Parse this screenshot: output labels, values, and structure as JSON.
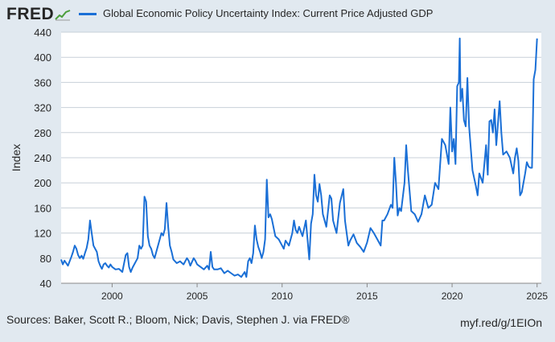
{
  "header": {
    "logo": "FRED",
    "logo_icon": "line-chart-icon"
  },
  "colors": {
    "series": "#1a6fd6",
    "grid": "#c8d0d8",
    "text": "#262626",
    "plot_bg": "#ffffff"
  },
  "footer": {
    "source": "Sources: Baker, Scott R.; Bloom, Nick; Davis, Stephen J. via FRED®",
    "short_url": "myf.red/g/1EIOn"
  },
  "chart_data": {
    "type": "line",
    "title": "Global Economic Policy Uncertainty Index: Current Price Adjusted GDP",
    "xlabel": "",
    "ylabel": "Index",
    "xlim": [
      1997.0,
      2025.25
    ],
    "ylim": [
      40,
      440
    ],
    "x_ticks": [
      2000,
      2005,
      2010,
      2015,
      2020,
      2025
    ],
    "y_ticks": [
      40,
      80,
      120,
      160,
      200,
      240,
      280,
      320,
      360,
      400,
      440
    ],
    "grid": true,
    "legend": "top",
    "series": [
      {
        "name": "Global Economic Policy Uncertainty Index: Current Price Adjusted GDP",
        "points": [
          [
            1997.0,
            78
          ],
          [
            1997.1,
            70
          ],
          [
            1997.2,
            76
          ],
          [
            1997.3,
            72
          ],
          [
            1997.4,
            68
          ],
          [
            1997.5,
            75
          ],
          [
            1997.6,
            82
          ],
          [
            1997.7,
            90
          ],
          [
            1997.8,
            100
          ],
          [
            1997.9,
            95
          ],
          [
            1998.0,
            85
          ],
          [
            1998.1,
            80
          ],
          [
            1998.2,
            84
          ],
          [
            1998.3,
            79
          ],
          [
            1998.4,
            88
          ],
          [
            1998.5,
            96
          ],
          [
            1998.6,
            110
          ],
          [
            1998.7,
            140
          ],
          [
            1998.8,
            120
          ],
          [
            1998.9,
            100
          ],
          [
            1999.0,
            95
          ],
          [
            1999.1,
            90
          ],
          [
            1999.2,
            75
          ],
          [
            1999.3,
            68
          ],
          [
            1999.4,
            63
          ],
          [
            1999.5,
            70
          ],
          [
            1999.6,
            72
          ],
          [
            1999.7,
            68
          ],
          [
            1999.8,
            65
          ],
          [
            1999.9,
            70
          ],
          [
            2000.0,
            66
          ],
          [
            2000.2,
            62
          ],
          [
            2000.4,
            63
          ],
          [
            2000.6,
            58
          ],
          [
            2000.8,
            85
          ],
          [
            2000.9,
            88
          ],
          [
            2001.0,
            66
          ],
          [
            2001.1,
            58
          ],
          [
            2001.2,
            65
          ],
          [
            2001.3,
            70
          ],
          [
            2001.4,
            75
          ],
          [
            2001.5,
            80
          ],
          [
            2001.6,
            100
          ],
          [
            2001.7,
            95
          ],
          [
            2001.8,
            100
          ],
          [
            2001.9,
            178
          ],
          [
            2002.0,
            170
          ],
          [
            2002.1,
            115
          ],
          [
            2002.2,
            100
          ],
          [
            2002.3,
            95
          ],
          [
            2002.4,
            85
          ],
          [
            2002.5,
            80
          ],
          [
            2002.6,
            90
          ],
          [
            2002.8,
            110
          ],
          [
            2002.9,
            120
          ],
          [
            2003.0,
            116
          ],
          [
            2003.1,
            126
          ],
          [
            2003.2,
            168
          ],
          [
            2003.3,
            130
          ],
          [
            2003.4,
            100
          ],
          [
            2003.5,
            90
          ],
          [
            2003.6,
            78
          ],
          [
            2003.8,
            72
          ],
          [
            2004.0,
            75
          ],
          [
            2004.2,
            70
          ],
          [
            2004.4,
            80
          ],
          [
            2004.5,
            76
          ],
          [
            2004.6,
            68
          ],
          [
            2004.8,
            80
          ],
          [
            2004.9,
            76
          ],
          [
            2005.0,
            70
          ],
          [
            2005.2,
            66
          ],
          [
            2005.4,
            62
          ],
          [
            2005.6,
            68
          ],
          [
            2005.7,
            62
          ],
          [
            2005.8,
            90
          ],
          [
            2005.9,
            66
          ],
          [
            2006.0,
            62
          ],
          [
            2006.2,
            62
          ],
          [
            2006.4,
            64
          ],
          [
            2006.6,
            56
          ],
          [
            2006.8,
            60
          ],
          [
            2007.0,
            56
          ],
          [
            2007.2,
            52
          ],
          [
            2007.4,
            54
          ],
          [
            2007.6,
            50
          ],
          [
            2007.8,
            58
          ],
          [
            2007.9,
            50
          ],
          [
            2008.0,
            75
          ],
          [
            2008.1,
            80
          ],
          [
            2008.2,
            72
          ],
          [
            2008.3,
            88
          ],
          [
            2008.4,
            132
          ],
          [
            2008.5,
            110
          ],
          [
            2008.6,
            98
          ],
          [
            2008.7,
            90
          ],
          [
            2008.8,
            80
          ],
          [
            2008.9,
            90
          ],
          [
            2009.0,
            110
          ],
          [
            2009.1,
            205
          ],
          [
            2009.2,
            145
          ],
          [
            2009.3,
            150
          ],
          [
            2009.4,
            142
          ],
          [
            2009.6,
            115
          ],
          [
            2009.8,
            110
          ],
          [
            2010.0,
            100
          ],
          [
            2010.1,
            95
          ],
          [
            2010.2,
            108
          ],
          [
            2010.4,
            100
          ],
          [
            2010.6,
            120
          ],
          [
            2010.7,
            140
          ],
          [
            2010.8,
            125
          ],
          [
            2010.9,
            120
          ],
          [
            2011.0,
            130
          ],
          [
            2011.2,
            115
          ],
          [
            2011.4,
            140
          ],
          [
            2011.6,
            78
          ],
          [
            2011.7,
            135
          ],
          [
            2011.8,
            150
          ],
          [
            2011.9,
            213
          ],
          [
            2012.0,
            180
          ],
          [
            2012.1,
            170
          ],
          [
            2012.2,
            198
          ],
          [
            2012.3,
            180
          ],
          [
            2012.4,
            150
          ],
          [
            2012.6,
            130
          ],
          [
            2012.8,
            180
          ],
          [
            2012.9,
            175
          ],
          [
            2013.0,
            140
          ],
          [
            2013.2,
            120
          ],
          [
            2013.4,
            168
          ],
          [
            2013.6,
            190
          ],
          [
            2013.7,
            140
          ],
          [
            2013.8,
            120
          ],
          [
            2013.9,
            100
          ],
          [
            2014.0,
            108
          ],
          [
            2014.2,
            118
          ],
          [
            2014.4,
            104
          ],
          [
            2014.6,
            98
          ],
          [
            2014.8,
            90
          ],
          [
            2015.0,
            105
          ],
          [
            2015.2,
            128
          ],
          [
            2015.4,
            120
          ],
          [
            2015.6,
            110
          ],
          [
            2015.8,
            100
          ],
          [
            2015.9,
            140
          ],
          [
            2016.0,
            140
          ],
          [
            2016.2,
            150
          ],
          [
            2016.4,
            165
          ],
          [
            2016.5,
            160
          ],
          [
            2016.6,
            240
          ],
          [
            2016.7,
            200
          ],
          [
            2016.8,
            148
          ],
          [
            2016.9,
            160
          ],
          [
            2017.0,
            155
          ],
          [
            2017.2,
            200
          ],
          [
            2017.3,
            260
          ],
          [
            2017.4,
            220
          ],
          [
            2017.6,
            155
          ],
          [
            2017.8,
            150
          ],
          [
            2018.0,
            138
          ],
          [
            2018.2,
            150
          ],
          [
            2018.4,
            180
          ],
          [
            2018.6,
            160
          ],
          [
            2018.8,
            165
          ],
          [
            2019.0,
            200
          ],
          [
            2019.2,
            190
          ],
          [
            2019.4,
            270
          ],
          [
            2019.6,
            260
          ],
          [
            2019.8,
            230
          ],
          [
            2019.9,
            320
          ],
          [
            2020.0,
            250
          ],
          [
            2020.1,
            270
          ],
          [
            2020.2,
            230
          ],
          [
            2020.3,
            354
          ],
          [
            2020.4,
            360
          ],
          [
            2020.45,
            430
          ],
          [
            2020.5,
            330
          ],
          [
            2020.6,
            350
          ],
          [
            2020.7,
            300
          ],
          [
            2020.8,
            290
          ],
          [
            2020.9,
            367
          ],
          [
            2021.0,
            290
          ],
          [
            2021.2,
            220
          ],
          [
            2021.4,
            195
          ],
          [
            2021.5,
            180
          ],
          [
            2021.6,
            215
          ],
          [
            2021.8,
            200
          ],
          [
            2022.0,
            260
          ],
          [
            2022.1,
            213
          ],
          [
            2022.2,
            298
          ],
          [
            2022.3,
            300
          ],
          [
            2022.4,
            280
          ],
          [
            2022.5,
            317
          ],
          [
            2022.6,
            260
          ],
          [
            2022.8,
            330
          ],
          [
            2022.9,
            280
          ],
          [
            2023.0,
            245
          ],
          [
            2023.2,
            250
          ],
          [
            2023.4,
            240
          ],
          [
            2023.6,
            215
          ],
          [
            2023.7,
            240
          ],
          [
            2023.8,
            255
          ],
          [
            2023.9,
            235
          ],
          [
            2024.0,
            180
          ],
          [
            2024.1,
            185
          ],
          [
            2024.3,
            215
          ],
          [
            2024.4,
            233
          ],
          [
            2024.5,
            226
          ],
          [
            2024.6,
            224
          ],
          [
            2024.7,
            224
          ],
          [
            2024.75,
            290
          ],
          [
            2024.8,
            365
          ],
          [
            2024.9,
            380
          ],
          [
            2025.0,
            430
          ]
        ]
      }
    ]
  }
}
